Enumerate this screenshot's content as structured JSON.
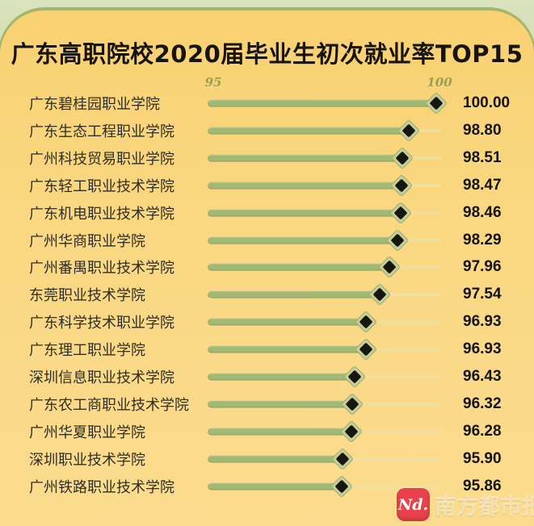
{
  "title": "广东高职院校2020届毕业生初次就业率TOP15",
  "axis": {
    "min_label": "95",
    "max_label": "100"
  },
  "chart_data": {
    "type": "bar",
    "orientation": "horizontal",
    "marker": "diamond",
    "title": "广东高职院校2020届毕业生初次就业率TOP15",
    "categories": [
      "广东碧桂园职业学院",
      "广东生态工程职业学院",
      "广州科技贸易职业学院",
      "广东轻工职业技术学院",
      "广东机电职业技术学院",
      "广州华商职业学院",
      "广州番禺职业技术学院",
      "东莞职业技术学院",
      "广东科学技术职业学院",
      "广东理工职业学院",
      "深圳信息职业技术学院",
      "广东农工商职业技术学院",
      "广州华夏职业学院",
      "深圳职业技术学院",
      "广州铁路职业技术学院"
    ],
    "values": [
      100.0,
      98.8,
      98.51,
      98.47,
      98.46,
      98.29,
      97.96,
      97.54,
      96.93,
      96.93,
      96.43,
      96.32,
      96.28,
      95.9,
      95.86
    ],
    "value_labels": [
      "100.00",
      "98.80",
      "98.51",
      "98.47",
      "98.46",
      "98.29",
      "97.96",
      "97.54",
      "96.93",
      "96.93",
      "96.43",
      "96.32",
      "96.28",
      "95.90",
      "95.86"
    ],
    "xlabel": "",
    "ylabel": "",
    "xlim": [
      90,
      100
    ],
    "axis_tick_labels": [
      "95",
      "100"
    ],
    "grid": false,
    "legend": false
  },
  "watermark": {
    "icon_text": "Nd.",
    "label": "南方都市报"
  },
  "colors": {
    "background_green": "#aec583",
    "card_yellow": "#f8d171",
    "card_rim": "#a9b369",
    "bar_green": "#a2b974",
    "track": "#eedfa2",
    "marker_black": "#17160f",
    "marker_ring": "#c6cf9c",
    "axis_label": "#99a151",
    "title_text": "#171410",
    "label_text": "#2f2e26",
    "value_text": "#141310",
    "watermark_red": "#e8414b"
  }
}
